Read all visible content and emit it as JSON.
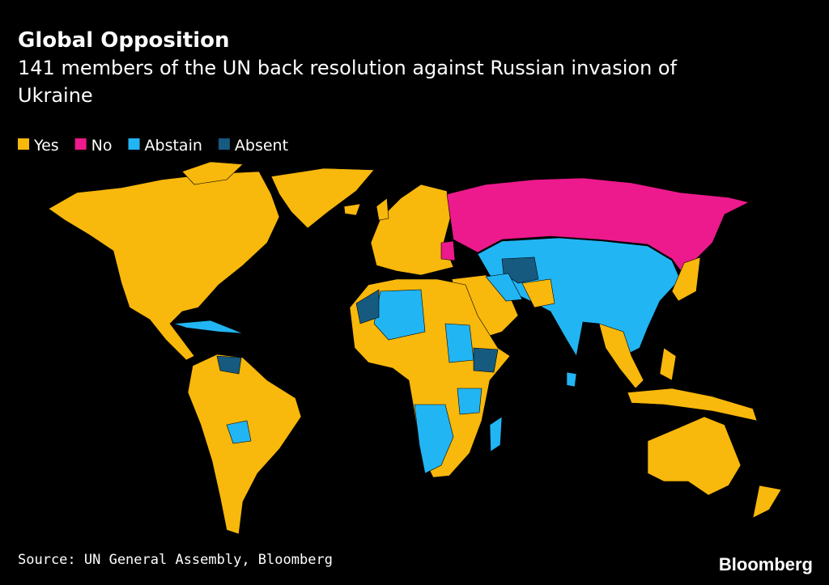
{
  "header": {
    "title": "Global Opposition",
    "subtitle_lines": [
      "141 members of the UN back resolution against Russian invasion of",
      "Ukraine"
    ]
  },
  "legend": [
    {
      "label": "Yes",
      "color": "#f8b80c"
    },
    {
      "label": "No",
      "color": "#ec1a8c"
    },
    {
      "label": "Abstain",
      "color": "#22b5f3"
    },
    {
      "label": "Absent",
      "color": "#165a80"
    }
  ],
  "footer": {
    "source": "Source: UN General Assembly, Bloomberg",
    "logo": "Bloomberg"
  }
}
